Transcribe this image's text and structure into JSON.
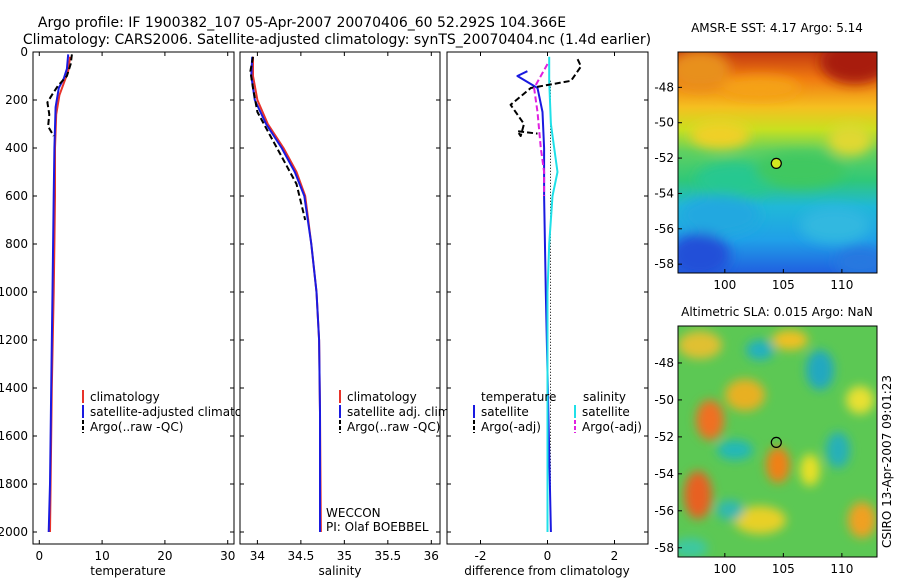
{
  "title_line1": "Argo profile: IF 1900382_107 05-Apr-2007 20070406_60 52.292S 104.366E",
  "title_line2": "Climatology: CARS2006. Satellite-adjusted climatology: synTS_20070404.nc (1.4d earlier)",
  "side_stamp": "CSIRO 13-Apr-2007 09:01:23",
  "colors": {
    "climatology": "#e8332a",
    "satellite": "#1a1ae0",
    "argo": "#000000",
    "salinity_satellite": "#20e0e8",
    "salinity_argo": "#e020e0",
    "dotted": "#000000"
  },
  "chart_data": [
    {
      "type": "line",
      "id": "temperature",
      "xlabel": "temperature",
      "xlim": [
        -1,
        31
      ],
      "ylim": [
        0,
        2050
      ],
      "y_reversed": true,
      "xticks": [
        0,
        10,
        20,
        30
      ],
      "xtick_labels": [
        "0",
        "10",
        "20",
        "30"
      ],
      "yticks": [
        0,
        200,
        400,
        600,
        800,
        1000,
        1200,
        1400,
        1600,
        1800,
        2000
      ],
      "ytick_labels": [
        "0",
        "200",
        "400",
        "600",
        "800",
        "1000",
        "1200",
        "1400",
        "1600",
        "1800",
        "2000"
      ],
      "legend": [
        "climatology",
        "satellite-adjusted climatology",
        "Argo(..raw -QC)"
      ],
      "series": [
        {
          "name": "climatology",
          "color": "#e8332a",
          "dash": "",
          "points": [
            [
              4.9,
              20
            ],
            [
              4.6,
              80
            ],
            [
              3.9,
              130
            ],
            [
              3.2,
              180
            ],
            [
              2.7,
              260
            ],
            [
              2.5,
              400
            ],
            [
              2.5,
              600
            ],
            [
              2.4,
              800
            ],
            [
              2.3,
              1000
            ],
            [
              2.0,
              1400
            ],
            [
              1.8,
              1800
            ],
            [
              1.7,
              2000
            ]
          ]
        },
        {
          "name": "satellite-adjusted climatology",
          "color": "#1a1ae0",
          "dash": "",
          "points": [
            [
              4.6,
              10
            ],
            [
              4.4,
              70
            ],
            [
              3.9,
              110
            ],
            [
              3.1,
              150
            ],
            [
              2.6,
              230
            ],
            [
              2.4,
              400
            ],
            [
              2.3,
              600
            ],
            [
              2.2,
              800
            ],
            [
              2.1,
              1000
            ],
            [
              1.9,
              1400
            ],
            [
              1.7,
              1800
            ],
            [
              1.5,
              2000
            ]
          ]
        },
        {
          "name": "Argo(..raw -QC)",
          "color": "#000000",
          "dash": "6,3",
          "points": [
            [
              5.2,
              10
            ],
            [
              5.0,
              50
            ],
            [
              4.4,
              100
            ],
            [
              3.0,
              140
            ],
            [
              2.0,
              180
            ],
            [
              1.3,
              210
            ],
            [
              1.6,
              260
            ],
            [
              1.4,
              310
            ],
            [
              2.3,
              350
            ]
          ]
        }
      ]
    },
    {
      "type": "line",
      "id": "salinity",
      "xlabel": "salinity",
      "xlim": [
        33.8,
        36.1
      ],
      "ylim": [
        0,
        2050
      ],
      "y_reversed": true,
      "xticks": [
        34,
        34.5,
        35,
        35.5,
        36
      ],
      "xtick_labels": [
        "34",
        "34.5",
        "35",
        "35.5",
        "36"
      ],
      "legend": [
        "climatology",
        "satellite adj. clim.",
        "Argo(..raw -QC)"
      ],
      "annotation_line1": "WECCON",
      "annotation_line2": "PI: Olaf BOEBBEL",
      "series": [
        {
          "name": "climatology",
          "color": "#e8332a",
          "dash": "",
          "points": [
            [
              33.95,
              20
            ],
            [
              33.95,
              100
            ],
            [
              34.0,
              200
            ],
            [
              34.12,
              300
            ],
            [
              34.3,
              400
            ],
            [
              34.45,
              500
            ],
            [
              34.55,
              600
            ],
            [
              34.62,
              800
            ],
            [
              34.68,
              1000
            ],
            [
              34.71,
              1200
            ],
            [
              34.72,
              1500
            ],
            [
              34.73,
              2000
            ]
          ]
        },
        {
          "name": "satellite adj. clim.",
          "color": "#1a1ae0",
          "dash": "",
          "points": [
            [
              33.94,
              20
            ],
            [
              33.93,
              100
            ],
            [
              33.97,
              200
            ],
            [
              34.1,
              300
            ],
            [
              34.28,
              400
            ],
            [
              34.43,
              500
            ],
            [
              34.54,
              600
            ],
            [
              34.62,
              800
            ],
            [
              34.68,
              1000
            ],
            [
              34.71,
              1200
            ],
            [
              34.72,
              1500
            ],
            [
              34.72,
              2000
            ]
          ]
        },
        {
          "name": "Argo(..raw -QC)",
          "color": "#000000",
          "dash": "6,3",
          "points": [
            [
              33.95,
              20
            ],
            [
              33.92,
              80
            ],
            [
              33.95,
              150
            ],
            [
              34.0,
              250
            ],
            [
              34.15,
              350
            ],
            [
              34.3,
              450
            ],
            [
              34.45,
              550
            ],
            [
              34.55,
              700
            ]
          ]
        }
      ]
    },
    {
      "type": "line",
      "id": "difference",
      "xlabel": "difference from climatology",
      "xlim": [
        -3,
        3
      ],
      "ylim": [
        0,
        2050
      ],
      "y_reversed": true,
      "xticks": [
        -2,
        0,
        2
      ],
      "xtick_labels": [
        "-2",
        "0",
        "2"
      ],
      "legend_headers": [
        "temperature",
        "salinity"
      ],
      "legend": [
        "satellite",
        "Argo(-adj)",
        "satellite",
        "Argo(-adj)"
      ],
      "series": [
        {
          "name": "temperature satellite",
          "color": "#1a1ae0",
          "dash": "",
          "points": [
            [
              -0.6,
              80
            ],
            [
              -0.9,
              100
            ],
            [
              -0.3,
              150
            ],
            [
              -0.15,
              250
            ],
            [
              -0.1,
              400
            ],
            [
              -0.1,
              600
            ],
            [
              -0.05,
              1000
            ],
            [
              0.1,
              2000
            ]
          ]
        },
        {
          "name": "salinity satellite",
          "color": "#20e0e8",
          "dash": "",
          "points": [
            [
              0.05,
              20
            ],
            [
              0.05,
              120
            ],
            [
              0.1,
              300
            ],
            [
              0.3,
              500
            ],
            [
              0.15,
              600
            ],
            [
              0.05,
              800
            ],
            [
              0.0,
              1000
            ],
            [
              0.0,
              2000
            ]
          ]
        },
        {
          "name": "temperature Argo(-adj)",
          "color": "#000000",
          "dash": "6,3",
          "points": [
            [
              0.9,
              30
            ],
            [
              1.0,
              60
            ],
            [
              0.7,
              120
            ],
            [
              -0.5,
              150
            ],
            [
              -1.1,
              220
            ],
            [
              -0.7,
              300
            ],
            [
              -0.8,
              350
            ],
            [
              -0.9,
              330
            ],
            [
              -0.3,
              340
            ]
          ]
        },
        {
          "name": "salinity Argo(-adj)",
          "color": "#e020e0",
          "dash": "6,3",
          "points": [
            [
              0.0,
              50
            ],
            [
              -0.2,
              100
            ],
            [
              -0.4,
              150
            ],
            [
              -0.3,
              250
            ],
            [
              -0.2,
              400
            ],
            [
              -0.1,
              500
            ],
            [
              -0.1,
              600
            ]
          ]
        }
      ]
    },
    {
      "type": "heatmap",
      "id": "sst-map",
      "title": "AMSR-E SST: 4.17 Argo: 5.14",
      "xlim": [
        96,
        113
      ],
      "ylim": [
        -58.5,
        -46
      ],
      "xticks": [
        100,
        105,
        110
      ],
      "xtick_labels": [
        "100",
        "105",
        "110"
      ],
      "yticks": [
        -48,
        -50,
        -52,
        -54,
        -56,
        -58
      ],
      "ytick_labels": [
        "-48",
        "-50",
        "-52",
        "-54",
        "-56",
        "-58"
      ],
      "marker": [
        104.4,
        -52.3
      ]
    },
    {
      "type": "heatmap",
      "id": "sla-map",
      "title": "Altimetric SLA: 0.015 Argo: NaN",
      "xlim": [
        96,
        113
      ],
      "ylim": [
        -58.5,
        -46
      ],
      "xticks": [
        100,
        105,
        110
      ],
      "xtick_labels": [
        "100",
        "105",
        "110"
      ],
      "yticks": [
        -48,
        -50,
        -52,
        -54,
        -56,
        -58
      ],
      "ytick_labels": [
        "-48",
        "-50",
        "-52",
        "-54",
        "-56",
        "-58"
      ],
      "marker": [
        104.4,
        -52.3
      ]
    }
  ]
}
